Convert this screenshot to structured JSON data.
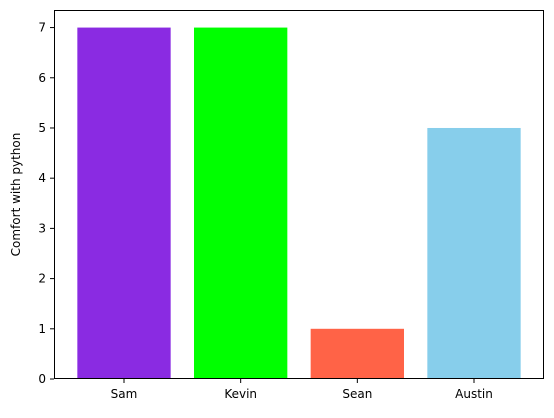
{
  "chart_data": {
    "type": "bar",
    "title": "",
    "xlabel": "",
    "ylabel": "Comfort with python",
    "categories": [
      "Sam",
      "Kevin",
      "Sean",
      "Austin"
    ],
    "values": [
      7,
      7,
      1,
      5
    ],
    "colors": [
      "#8a2be2",
      "#00ff00",
      "#ff6347",
      "#87ceeb"
    ],
    "ylim": [
      0,
      7.35
    ],
    "yticks": [
      0,
      1,
      2,
      3,
      4,
      5,
      6,
      7
    ],
    "grid": false,
    "legend": "none"
  }
}
